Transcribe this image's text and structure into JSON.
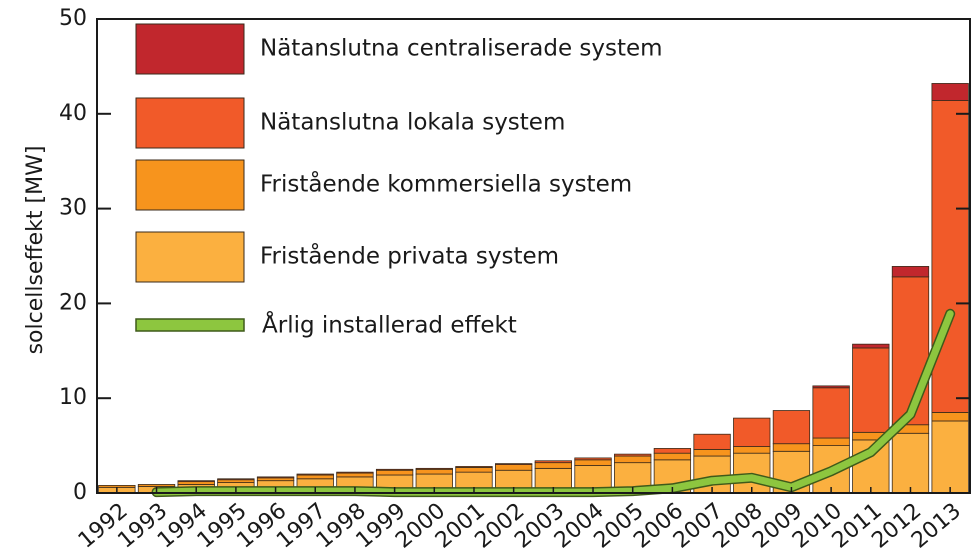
{
  "chart_data": {
    "type": "bar",
    "stacked": true,
    "title": "",
    "xlabel": "",
    "ylabel": "solcellseffekt [MW]",
    "ylim": [
      0,
      50
    ],
    "yticks": [
      0,
      10,
      20,
      30,
      40,
      50
    ],
    "grid": false,
    "legend_position": "top-left",
    "categories": [
      "1992",
      "1993",
      "1994",
      "1995",
      "1996",
      "1997",
      "1998",
      "1999",
      "2000",
      "2001",
      "2002",
      "2003",
      "2004",
      "2005",
      "2006",
      "2007",
      "2008",
      "2009",
      "2010",
      "2011",
      "2012",
      "2013"
    ],
    "series": [
      {
        "name": "Fristående privata system",
        "color": "#fbb040",
        "values": [
          0.6,
          0.7,
          0.9,
          1.1,
          1.3,
          1.5,
          1.7,
          1.9,
          2.0,
          2.2,
          2.4,
          2.6,
          2.9,
          3.2,
          3.5,
          3.9,
          4.2,
          4.4,
          5.0,
          5.6,
          6.3,
          7.6
        ]
      },
      {
        "name": "Fristående kommersiella system",
        "color": "#f7941d",
        "values": [
          0.2,
          0.2,
          0.3,
          0.3,
          0.3,
          0.4,
          0.4,
          0.5,
          0.5,
          0.5,
          0.6,
          0.6,
          0.6,
          0.7,
          0.7,
          0.7,
          0.7,
          0.8,
          0.8,
          0.8,
          0.9,
          0.9
        ]
      },
      {
        "name": "Nätanslutna lokala system",
        "color": "#f15a29",
        "values": [
          0,
          0,
          0.1,
          0.1,
          0.1,
          0.1,
          0.1,
          0.1,
          0.1,
          0.1,
          0.1,
          0.2,
          0.2,
          0.2,
          0.5,
          1.6,
          3.0,
          3.5,
          5.3,
          8.9,
          15.6,
          32.9
        ]
      },
      {
        "name": "Nätanslutna centraliserade system",
        "color": "#c1272d",
        "values": [
          0,
          0,
          0,
          0,
          0,
          0,
          0,
          0,
          0,
          0,
          0,
          0,
          0,
          0,
          0,
          0,
          0,
          0,
          0.2,
          0.4,
          1.1,
          1.8
        ]
      }
    ],
    "line_series": {
      "name": "Årlig installerad effekt",
      "color": "#8dc63f",
      "values": [
        null,
        0.1,
        0.2,
        0.2,
        0.2,
        0.2,
        0.2,
        0.1,
        0.1,
        0.1,
        0.1,
        0.1,
        0.1,
        0.2,
        0.5,
        1.3,
        1.6,
        0.6,
        2.3,
        4.3,
        8.3,
        18.9
      ]
    }
  }
}
